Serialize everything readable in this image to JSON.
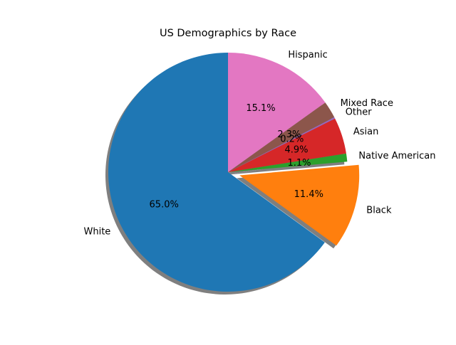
{
  "chart_data": {
    "type": "pie",
    "title": "US Demographics by Race",
    "start_angle_deg": 90,
    "direction": "counterclockwise",
    "shadow": true,
    "slices": [
      {
        "label": "White",
        "value": 65.0,
        "pct_label": "65.0%",
        "color": "#1f77b4",
        "explode": 0
      },
      {
        "label": "Black",
        "value": 11.4,
        "pct_label": "11.4%",
        "color": "#ff7f0e",
        "explode": 0.1
      },
      {
        "label": "Native American",
        "value": 1.1,
        "pct_label": "1.1%",
        "color": "#2ca02c",
        "explode": 0
      },
      {
        "label": "Asian",
        "value": 4.9,
        "pct_label": "4.9%",
        "color": "#d62728",
        "explode": 0
      },
      {
        "label": "Other",
        "value": 0.2,
        "pct_label": "0.2%",
        "color": "#9467bd",
        "explode": 0
      },
      {
        "label": "Mixed Race",
        "value": 2.3,
        "pct_label": "2.3%",
        "color": "#8c564b",
        "explode": 0
      },
      {
        "label": "Hispanic",
        "value": 15.1,
        "pct_label": "15.1%",
        "color": "#e377c2",
        "explode": 0
      }
    ]
  }
}
